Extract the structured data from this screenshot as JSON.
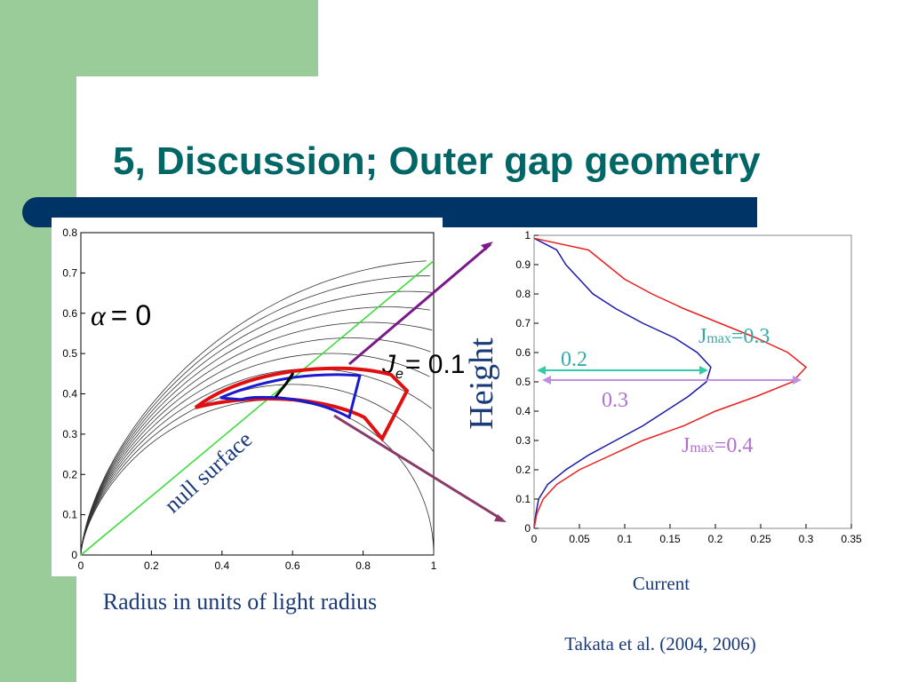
{
  "slide": {
    "title": "5, Discussion; Outer gap geometry",
    "x_caption": "Radius in units of light radius",
    "citation": "Takata et al. (2004, 2006)"
  },
  "chart_data": [
    {
      "type": "line",
      "annotations": [
        "null surface"
      ],
      "alpha_label": {
        "symbol": "α",
        "rest": "= 0"
      },
      "je_label": {
        "symbol": "J",
        "sub": "e",
        "rest": "= 0.1"
      },
      "series": [
        {
          "color": "#33dd33",
          "x": [
            0,
            1
          ],
          "values": [
            0,
            0.73
          ]
        }
      ],
      "xlim": [
        0,
        1
      ],
      "xticks": [
        0,
        0.2,
        0.4,
        0.6,
        0.8,
        1
      ],
      "ylim": [
        0,
        0.8
      ],
      "yticks": [
        0,
        0.1,
        0.2,
        0.3,
        0.4,
        0.5,
        0.6,
        0.7,
        0.8
      ]
    },
    {
      "type": "line",
      "xlabel": "Current",
      "ylabel": "Height",
      "annotations": [
        {
          "text": "J",
          "sub": "max",
          "rest": "=0.3",
          "color": "#33aaaa"
        },
        {
          "text": "J",
          "sub": "max",
          "rest": "=0.4",
          "color": "#b070d0"
        },
        {
          "text": "0.2",
          "color": "#33aaaa"
        },
        {
          "text": "0.3",
          "color": "#b070d0"
        }
      ],
      "series": [
        {
          "color": "#1a1aa8",
          "x": [
            0,
            0.002,
            0.005,
            0.015,
            0.035,
            0.06,
            0.09,
            0.12,
            0.145,
            0.17,
            0.19,
            0.195,
            0.18,
            0.155,
            0.12,
            0.09,
            0.065,
            0.05,
            0.035,
            0.025,
            0
          ],
          "values": [
            0,
            0.05,
            0.1,
            0.15,
            0.2,
            0.25,
            0.3,
            0.35,
            0.4,
            0.45,
            0.5,
            0.55,
            0.6,
            0.65,
            0.7,
            0.75,
            0.8,
            0.85,
            0.9,
            0.95,
            0.99
          ]
        },
        {
          "color": "#e82020",
          "x": [
            0,
            0.003,
            0.01,
            0.025,
            0.05,
            0.085,
            0.12,
            0.165,
            0.2,
            0.245,
            0.285,
            0.3,
            0.28,
            0.245,
            0.205,
            0.165,
            0.13,
            0.1,
            0.08,
            0.06,
            0
          ],
          "values": [
            0,
            0.05,
            0.1,
            0.15,
            0.2,
            0.25,
            0.3,
            0.35,
            0.4,
            0.45,
            0.5,
            0.55,
            0.6,
            0.65,
            0.7,
            0.75,
            0.8,
            0.85,
            0.9,
            0.95,
            0.99
          ]
        }
      ],
      "xlim": [
        0,
        0.35
      ],
      "xticks": [
        0,
        0.05,
        0.1,
        0.15,
        0.2,
        0.25,
        0.3,
        0.35
      ],
      "ylim": [
        0,
        1
      ],
      "yticks": [
        0,
        0.1,
        0.2,
        0.3,
        0.4,
        0.5,
        0.6,
        0.7,
        0.8,
        0.9,
        1
      ]
    }
  ]
}
